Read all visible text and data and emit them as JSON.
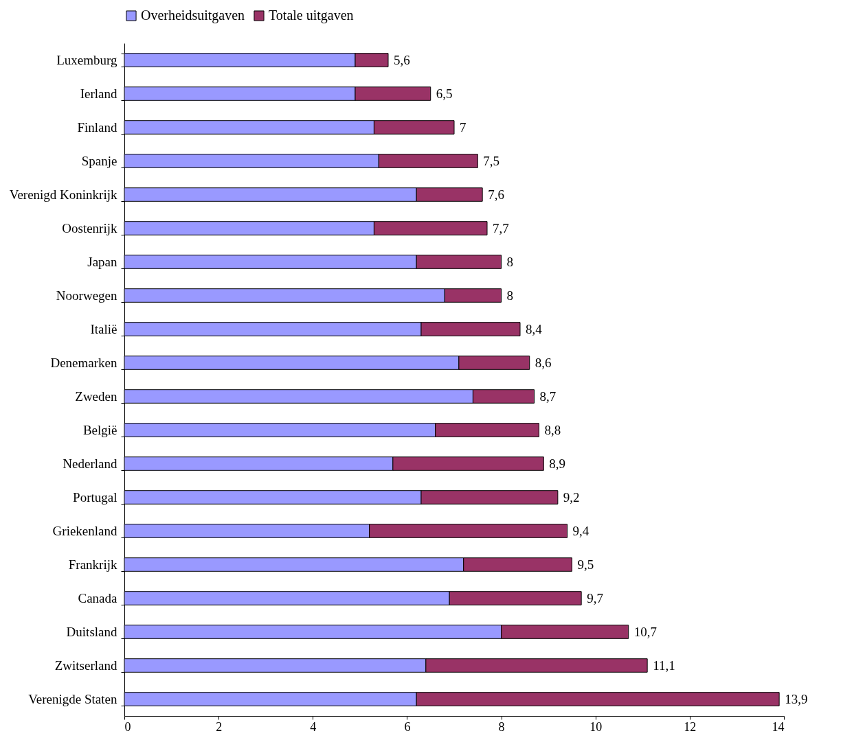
{
  "chart_data": {
    "type": "bar",
    "orientation": "horizontal",
    "stacked": true,
    "totals": [
      "5,6",
      "6,5",
      "7",
      "7,5",
      "7,6",
      "7,7",
      "8",
      "8",
      "8,4",
      "8,6",
      "8,7",
      "8,8",
      "8,9",
      "9,2",
      "9,4",
      "9,5",
      "9,7",
      "10,7",
      "11,1",
      "13,9"
    ],
    "categories": [
      "Luxemburg",
      "Ierland",
      "Finland",
      "Spanje",
      "Verenigd Koninkrijk",
      "Oostenrijk",
      "Japan",
      "Noorwegen",
      "Italië",
      "Denemarken",
      "Zweden",
      "België",
      "Nederland",
      "Portugal",
      "Griekenland",
      "Frankrijk",
      "Canada",
      "Duitsland",
      "Zwitserland",
      "Verenigde Staten"
    ],
    "series": [
      {
        "name": "Overheidsuitgaven",
        "color": "#9999ff",
        "values": [
          4.9,
          4.9,
          5.3,
          5.4,
          6.2,
          5.3,
          6.2,
          6.8,
          6.3,
          7.1,
          7.4,
          6.6,
          5.7,
          6.3,
          5.2,
          7.2,
          6.9,
          8.0,
          6.4,
          6.2
        ]
      },
      {
        "name": "Totale uitgaven",
        "color": "#993366",
        "values": [
          0.7,
          1.6,
          1.7,
          2.1,
          1.4,
          2.4,
          1.8,
          1.2,
          2.1,
          1.5,
          1.3,
          2.2,
          3.2,
          2.9,
          4.2,
          2.3,
          2.8,
          2.7,
          4.7,
          7.7
        ]
      }
    ],
    "xlim": [
      0,
      14
    ],
    "xticks": [
      0,
      2,
      4,
      6,
      8,
      10,
      12,
      14
    ],
    "grid": false,
    "legend": "top"
  }
}
